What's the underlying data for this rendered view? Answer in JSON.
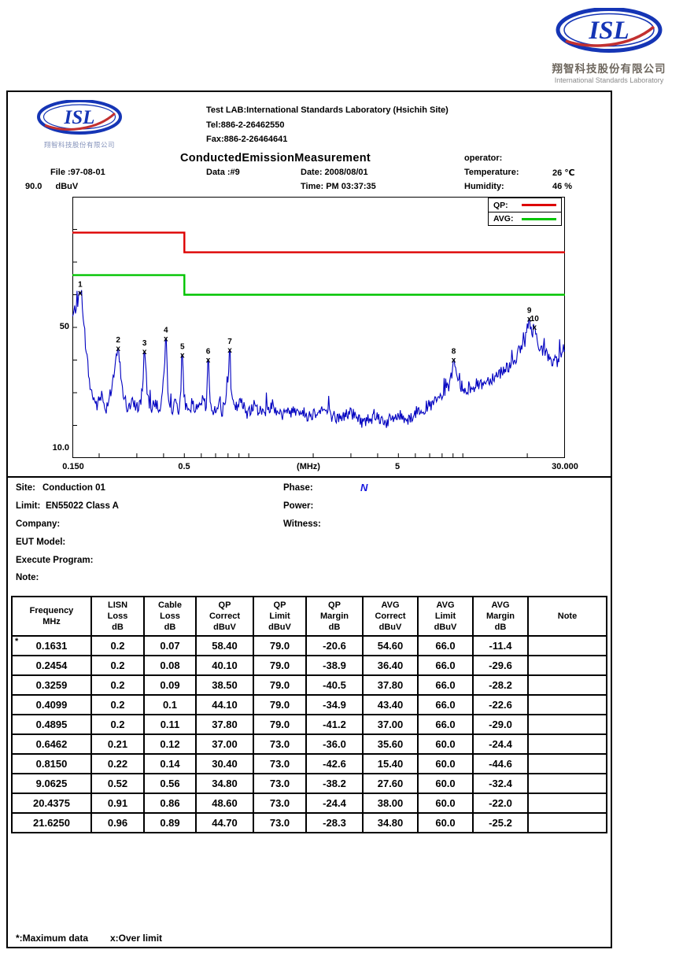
{
  "logo_top": {
    "text": "ISL",
    "company_zh": "翔智科技股份有限公司",
    "company_en": "International Standards Laboratory"
  },
  "logo_inner": {
    "text": "ISL",
    "company_zh": "翔智科技股份有限公司"
  },
  "lab_info": {
    "line1": "Test LAB:International Standards Laboratory (Hsichih Site)",
    "line2": "Tel:886-2-26462550",
    "line3": "Fax:886-2-26464641"
  },
  "header": {
    "title": "ConductedEmissionMeasurement",
    "file_label": "File :97-08-01",
    "data_label": "Data :#9",
    "date_label": "Date: 2008/08/01",
    "time_label": "Time: PM 03:37:35",
    "operator_label": "operator:",
    "temperature_label": "Temperature:",
    "temperature_value": "26 ℃",
    "humidity_label": "Humidity:",
    "humidity_value": "46 %",
    "y_top_label": "90.0",
    "y_unit": "dBuV"
  },
  "legend": {
    "qp": "QP:",
    "avg": "AVG:"
  },
  "info": {
    "site_label": "Site:",
    "site_value": "Conduction 01",
    "limit_label": "Limit:",
    "limit_value": "EN55022 Class A",
    "company_label": "Company:",
    "eut_label": "EUT Model:",
    "program_label": "Execute Program:",
    "note_label": "Note:",
    "phase_label": "Phase:",
    "phase_value": "N",
    "power_label": "Power:",
    "witness_label": "Witness:"
  },
  "table": {
    "headers": [
      [
        "Frequency",
        "MHz"
      ],
      [
        "LISN",
        "Loss",
        "dB"
      ],
      [
        "Cable",
        "Loss",
        "dB"
      ],
      [
        "QP",
        "Correct",
        "dBuV"
      ],
      [
        "QP",
        "Limit",
        "dBuV"
      ],
      [
        "QP",
        "Margin",
        "dB"
      ],
      [
        "AVG",
        "Correct",
        "dBuV"
      ],
      [
        "AVG",
        "Limit",
        "dBuV"
      ],
      [
        "AVG",
        "Margin",
        "dB"
      ],
      [
        "Note"
      ]
    ],
    "rows": [
      {
        "star": true,
        "cells": [
          "0.1631",
          "0.2",
          "0.07",
          "58.40",
          "79.0",
          "-20.6",
          "54.60",
          "66.0",
          "-11.4",
          ""
        ]
      },
      {
        "star": false,
        "cells": [
          "0.2454",
          "0.2",
          "0.08",
          "40.10",
          "79.0",
          "-38.9",
          "36.40",
          "66.0",
          "-29.6",
          ""
        ]
      },
      {
        "star": false,
        "cells": [
          "0.3259",
          "0.2",
          "0.09",
          "38.50",
          "79.0",
          "-40.5",
          "37.80",
          "66.0",
          "-28.2",
          ""
        ]
      },
      {
        "star": false,
        "cells": [
          "0.4099",
          "0.2",
          "0.1",
          "44.10",
          "79.0",
          "-34.9",
          "43.40",
          "66.0",
          "-22.6",
          ""
        ]
      },
      {
        "star": false,
        "cells": [
          "0.4895",
          "0.2",
          "0.11",
          "37.80",
          "79.0",
          "-41.2",
          "37.00",
          "66.0",
          "-29.0",
          ""
        ]
      },
      {
        "star": false,
        "cells": [
          "0.6462",
          "0.21",
          "0.12",
          "37.00",
          "73.0",
          "-36.0",
          "35.60",
          "60.0",
          "-24.4",
          ""
        ]
      },
      {
        "star": false,
        "cells": [
          "0.8150",
          "0.22",
          "0.14",
          "30.40",
          "73.0",
          "-42.6",
          "15.40",
          "60.0",
          "-44.6",
          ""
        ]
      },
      {
        "star": false,
        "cells": [
          "9.0625",
          "0.52",
          "0.56",
          "34.80",
          "73.0",
          "-38.2",
          "27.60",
          "60.0",
          "-32.4",
          ""
        ]
      },
      {
        "star": false,
        "cells": [
          "20.4375",
          "0.91",
          "0.86",
          "48.60",
          "73.0",
          "-24.4",
          "38.00",
          "60.0",
          "-22.0",
          ""
        ]
      },
      {
        "star": false,
        "cells": [
          "21.6250",
          "0.96",
          "0.89",
          "44.70",
          "73.0",
          "-28.3",
          "34.80",
          "60.0",
          "-25.2",
          ""
        ]
      }
    ]
  },
  "footer": {
    "max_note": "*:Maximum data",
    "over_note": "x:Over limit"
  },
  "chart_data": {
    "type": "line",
    "title": "ConductedEmissionMeasurement",
    "x_axis": {
      "scale": "log",
      "min": 0.15,
      "max": 30,
      "unit": "MHz",
      "tick_labels": [
        "0.150",
        "0.5",
        "(MHz)",
        "5",
        "30.000"
      ],
      "tick_positions": [
        0.15,
        0.5,
        null,
        5,
        30
      ]
    },
    "y_axis": {
      "unit": "dBuV",
      "min": 10,
      "max": 90,
      "tick_labels": {
        "top": "90.0",
        "mid": "50",
        "bottom": "10.0"
      }
    },
    "limit_lines": [
      {
        "name": "QP",
        "color": "#dd0000",
        "segments": [
          [
            0.15,
            79
          ],
          [
            0.5,
            79
          ],
          [
            0.5,
            73
          ],
          [
            30,
            73
          ]
        ]
      },
      {
        "name": "AVG",
        "color": "#00c400",
        "segments": [
          [
            0.15,
            66
          ],
          [
            0.5,
            66
          ],
          [
            0.5,
            60
          ],
          [
            30,
            60
          ]
        ]
      }
    ],
    "trace": {
      "name": "measured-emission",
      "color": "#0000c0"
    },
    "markers": [
      {
        "n": "1",
        "freq": 0.1631,
        "level": 60.5
      },
      {
        "n": "2",
        "freq": 0.2454,
        "level": 43.5
      },
      {
        "n": "3",
        "freq": 0.3259,
        "level": 42.5
      },
      {
        "n": "4",
        "freq": 0.4099,
        "level": 46.5
      },
      {
        "n": "5",
        "freq": 0.4895,
        "level": 41.5
      },
      {
        "n": "6",
        "freq": 0.6462,
        "level": 40.0
      },
      {
        "n": "7",
        "freq": 0.815,
        "level": 43.0
      },
      {
        "n": "8",
        "freq": 9.0625,
        "level": 40.0
      },
      {
        "n": "9",
        "freq": 20.4375,
        "level": 52.5
      },
      {
        "n": "10",
        "freq": 21.625,
        "level": 50.0
      }
    ],
    "baseline_points": [
      [
        0.15,
        53
      ],
      [
        0.1631,
        60.5
      ],
      [
        0.172,
        46
      ],
      [
        0.182,
        31
      ],
      [
        0.195,
        26
      ],
      [
        0.205,
        29
      ],
      [
        0.215,
        25
      ],
      [
        0.228,
        31
      ],
      [
        0.2454,
        43.5
      ],
      [
        0.258,
        30
      ],
      [
        0.272,
        25
      ],
      [
        0.29,
        27
      ],
      [
        0.308,
        25
      ],
      [
        0.318,
        31
      ],
      [
        0.3259,
        42.5
      ],
      [
        0.336,
        29
      ],
      [
        0.352,
        25
      ],
      [
        0.368,
        27
      ],
      [
        0.385,
        24
      ],
      [
        0.4,
        33
      ],
      [
        0.4099,
        46.5
      ],
      [
        0.42,
        30
      ],
      [
        0.438,
        25
      ],
      [
        0.458,
        27
      ],
      [
        0.472,
        25
      ],
      [
        0.483,
        31
      ],
      [
        0.4895,
        41.5
      ],
      [
        0.5,
        28
      ],
      [
        0.52,
        24
      ],
      [
        0.545,
        27
      ],
      [
        0.575,
        24
      ],
      [
        0.61,
        28
      ],
      [
        0.633,
        25
      ],
      [
        0.6462,
        40
      ],
      [
        0.66,
        27
      ],
      [
        0.69,
        24
      ],
      [
        0.72,
        27
      ],
      [
        0.75,
        24
      ],
      [
        0.79,
        30
      ],
      [
        0.815,
        43
      ],
      [
        0.83,
        28
      ],
      [
        0.86,
        25
      ],
      [
        0.92,
        27
      ],
      [
        0.98,
        24
      ],
      [
        1.05,
        26
      ],
      [
        1.15,
        24
      ],
      [
        1.3,
        26
      ],
      [
        1.45,
        23
      ],
      [
        1.65,
        25
      ],
      [
        1.9,
        23
      ],
      [
        2.2,
        25
      ],
      [
        2.6,
        22
      ],
      [
        3.0,
        24
      ],
      [
        3.4,
        21
      ],
      [
        3.9,
        23
      ],
      [
        4.4,
        21
      ],
      [
        5.0,
        23
      ],
      [
        5.6,
        22
      ],
      [
        6.3,
        25
      ],
      [
        7.1,
        26
      ],
      [
        8.0,
        29
      ],
      [
        8.7,
        32
      ],
      [
        9.0625,
        40
      ],
      [
        9.4,
        33
      ],
      [
        10.0,
        30
      ],
      [
        11.0,
        32
      ],
      [
        12.5,
        33
      ],
      [
        14.0,
        35
      ],
      [
        15.5,
        37
      ],
      [
        17.0,
        39
      ],
      [
        18.5,
        43
      ],
      [
        19.5,
        46
      ],
      [
        20.4375,
        52.5
      ],
      [
        20.9,
        48
      ],
      [
        21.2,
        49
      ],
      [
        21.625,
        50
      ],
      [
        22.3,
        46
      ],
      [
        23.5,
        43
      ],
      [
        25.0,
        41
      ],
      [
        27.0,
        39
      ],
      [
        28.5,
        41
      ],
      [
        30.0,
        42
      ]
    ],
    "noise_db": 2.0
  }
}
